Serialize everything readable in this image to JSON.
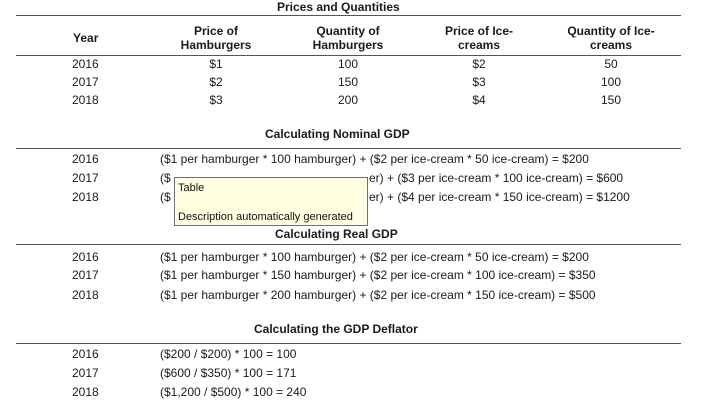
{
  "prices_title": "Prices and Quantities",
  "headers": {
    "year": "Year",
    "price_hamburgers": [
      "Price of",
      "Hamburgers"
    ],
    "qty_hamburgers": [
      "Quantity of",
      "Hamburgers"
    ],
    "price_icecreams": [
      "Price of Ice-",
      "creams"
    ],
    "qty_icecreams": [
      "Quantity of Ice-",
      "creams"
    ]
  },
  "prices_rows": [
    {
      "year": "2016",
      "ph": "$1",
      "qh": "100",
      "pi": "$2",
      "qi": "50"
    },
    {
      "year": "2017",
      "ph": "$2",
      "qh": "150",
      "pi": "$3",
      "qi": "100"
    },
    {
      "year": "2018",
      "ph": "$3",
      "qh": "200",
      "pi": "$4",
      "qi": "150"
    }
  ],
  "nominal_title": "Calculating Nominal GDP",
  "nominal_rows": [
    {
      "year": "2016",
      "formula": "($1 per hamburger * 100 hamburger) + ($2 per ice-cream * 50 ice-cream) = $200"
    },
    {
      "year": "2017",
      "formula_left": "($",
      "formula_right": "er) + ($3 per ice-cream * 100 ice-cream) = $600"
    },
    {
      "year": "2018",
      "formula_left": "($",
      "formula_right": "er) + ($4 per ice-cream * 150 ice-cream) = $1200"
    }
  ],
  "real_title": "Calculating Real GDP",
  "real_rows": [
    {
      "year": "2016",
      "formula": "($1 per hamburger * 100 hamburger) + ($2 per ice-cream * 50 ice-cream) = $200"
    },
    {
      "year": "2017",
      "formula": "($1 per hamburger * 150 hamburger) + ($2 per ice-cream * 100 ice-cream) = $350"
    },
    {
      "year": "2018",
      "formula": "($1 per hamburger * 200 hamburger) + ($2 per ice-cream * 150 ice-cream) = $500"
    }
  ],
  "deflator_title": "Calculating the GDP Deflator",
  "deflator_rows": [
    {
      "year": "2016",
      "formula": "($200 / $200) * 100 = 100"
    },
    {
      "year": "2017",
      "formula": "($600 / $350) * 100 = 171"
    },
    {
      "year": "2018",
      "formula": "($1,200 / $500) * 100 = 240"
    }
  ],
  "tooltip": {
    "line1": "Table",
    "line2": "Description automatically generated"
  }
}
